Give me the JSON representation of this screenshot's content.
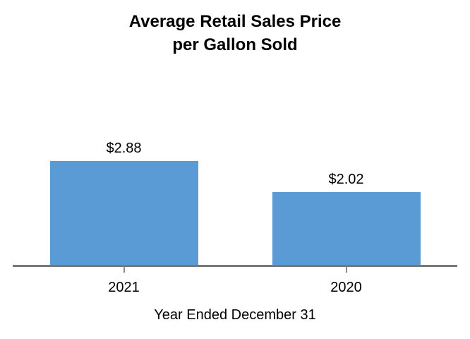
{
  "chart_data": {
    "type": "bar",
    "title": "Average Retail Sales Price per Gallon Sold",
    "title_lines": [
      "Average Retail Sales Price",
      "per Gallon Sold"
    ],
    "categories": [
      "2021",
      "2020"
    ],
    "values": [
      2.88,
      2.02
    ],
    "value_labels": [
      "$2.88",
      "$2.02"
    ],
    "xlabel": "Year Ended December 31",
    "ylabel": "",
    "ylim": [
      0,
      5
    ],
    "grid": false,
    "legend_position": "none",
    "bar_color": "#5B9BD5",
    "axis_line_color": "#787878",
    "tick_color": "#8A8A8A",
    "text_color": "#000000"
  }
}
